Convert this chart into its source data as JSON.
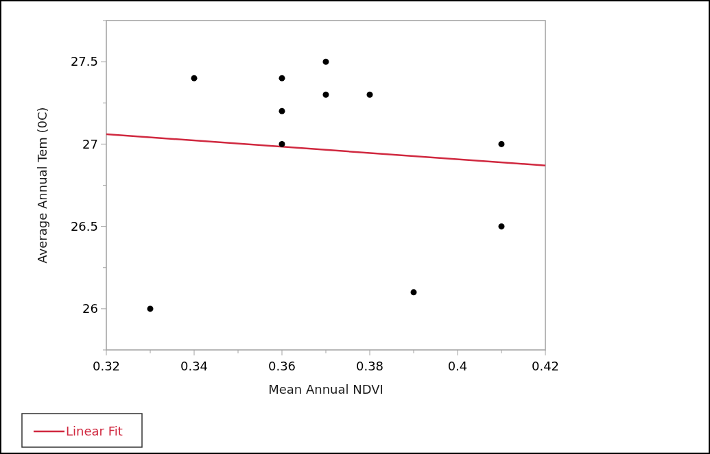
{
  "chart_data": {
    "type": "scatter",
    "xlabel": "Mean Annual NDVI",
    "ylabel": "Average Annual Tem (0C)",
    "xlim": [
      0.32,
      0.42
    ],
    "ylim": [
      25.75,
      27.75
    ],
    "xticks": [
      0.32,
      {
        "value": 0.33,
        "label": null
      },
      0.34,
      {
        "value": 0.35,
        "label": null
      },
      0.36,
      {
        "value": 0.37,
        "label": null
      },
      0.38,
      {
        "value": 0.39,
        "label": null
      },
      0.4,
      {
        "value": 0.41,
        "label": null
      },
      0.42
    ],
    "yticks": [
      {
        "value": 25.75,
        "label": null
      },
      26,
      {
        "value": 26.25,
        "label": null
      },
      26.5,
      {
        "value": 26.75,
        "label": null
      },
      27,
      {
        "value": 27.25,
        "label": null
      },
      27.5,
      {
        "value": 27.75,
        "label": null
      }
    ],
    "legend": "bottom left",
    "grid": false,
    "series": [
      {
        "marker": "circle",
        "color": "#000000",
        "x": [
          0.33,
          0.34,
          0.36,
          0.36,
          0.36,
          0.37,
          0.37,
          0.38,
          0.39,
          0.41,
          0.41
        ],
        "values": [
          26,
          27.4,
          27.4,
          27.2,
          27,
          27.5,
          27.3,
          27.3,
          26.1,
          27,
          26.5
        ]
      },
      {
        "type": "line",
        "name": "Linear Fit",
        "color": "#d0283f",
        "x": [
          0.32,
          0.42
        ],
        "values": [
          27.06,
          26.87
        ]
      }
    ]
  }
}
